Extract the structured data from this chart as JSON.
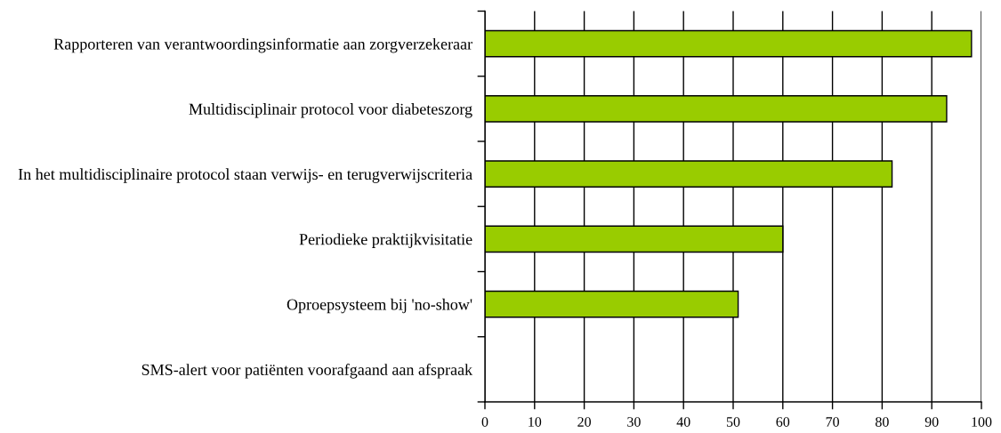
{
  "chart_data": {
    "type": "bar",
    "orientation": "horizontal",
    "categories": [
      "Rapporteren van verantwoordingsinformatie aan zorgverzekeraar",
      "Multidisciplinair protocol voor diabeteszorg",
      "In het multidisciplinaire protocol staan verwijs- en terugverwijscriteria",
      "Periodieke praktijkvisitatie",
      "Oproepsysteem bij 'no-show'",
      "SMS-alert voor patiënten voorafgaand aan afspraak"
    ],
    "values": [
      98,
      93,
      82,
      60,
      51,
      0
    ],
    "color": "#99cc00",
    "xlim": [
      0,
      100
    ],
    "xticks": [
      0,
      10,
      20,
      30,
      40,
      50,
      60,
      70,
      80,
      90,
      100
    ],
    "grid": "x"
  }
}
